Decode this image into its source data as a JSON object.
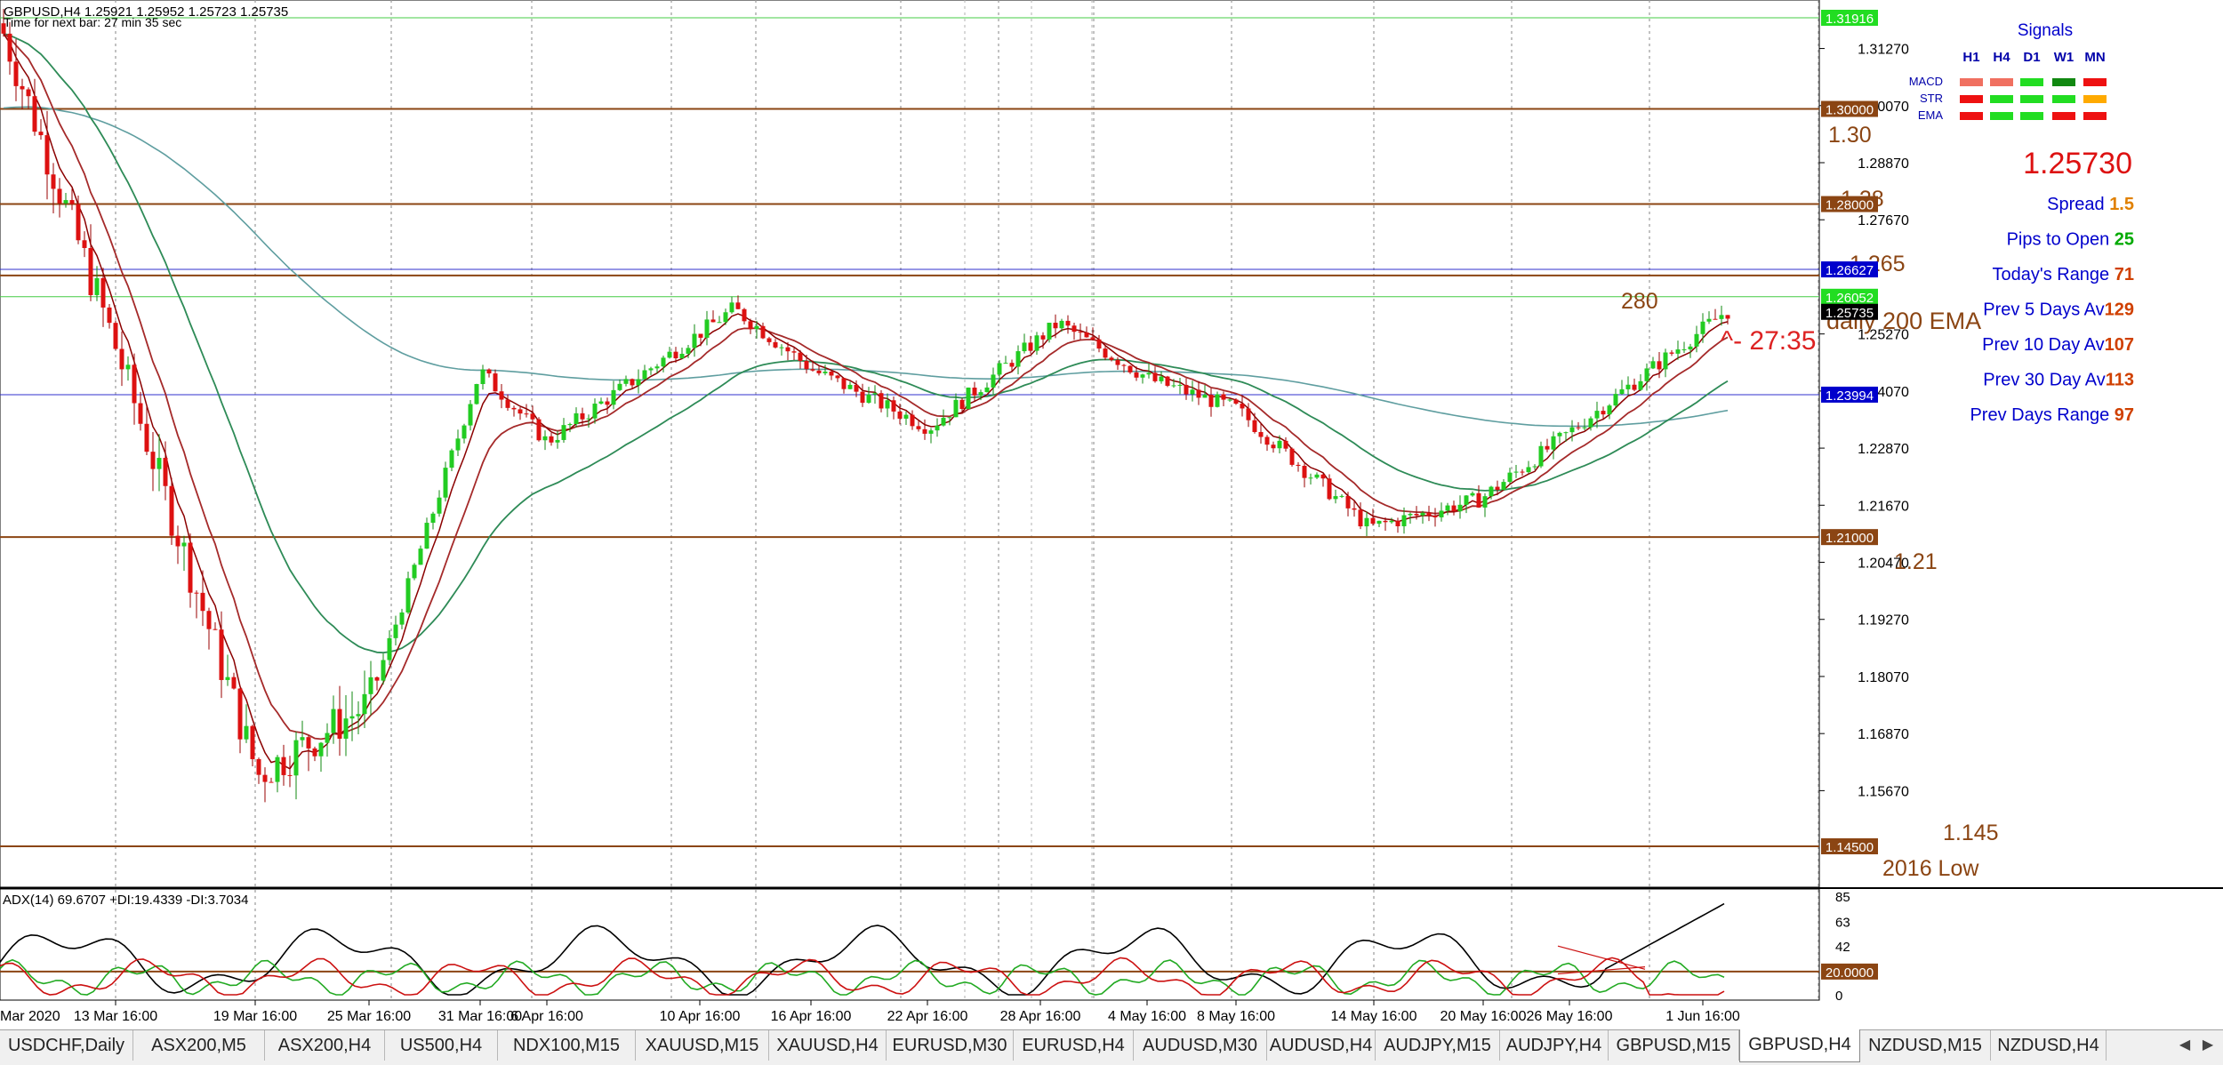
{
  "header": {
    "symbol_line": "GBPUSD,H4  1.25921 1.25952 1.25723 1.25735",
    "timer_line": "Time for next bar: 27 min 35 sec"
  },
  "signals": {
    "title": "Signals",
    "columns": [
      "H1",
      "H4",
      "D1",
      "W1",
      "MN"
    ],
    "rows": [
      {
        "label": "MACD",
        "colors": [
          "#f07060",
          "#f07060",
          "#22dd22",
          "#118811",
          "#ee1111"
        ]
      },
      {
        "label": "STR",
        "colors": [
          "#ee1111",
          "#22dd22",
          "#22dd22",
          "#22dd22",
          "#ffaa00"
        ]
      },
      {
        "label": "EMA",
        "colors": [
          "#ee1111",
          "#22dd22",
          "#22dd22",
          "#ee1111",
          "#ee1111"
        ]
      }
    ]
  },
  "stats": {
    "price": "1.25730",
    "rows": [
      {
        "label": "Spread",
        "value": "1.5",
        "value_color": "#e08000"
      },
      {
        "label": "Pips to Open",
        "value": "25",
        "value_color": "#00aa00"
      },
      {
        "label": "Today's Range",
        "value": "71",
        "value_color": "#d04000"
      },
      {
        "label": "Prev 5 Days Av",
        "value": "129",
        "value_color": "#d04000"
      },
      {
        "label": "Prev 10 Day Av",
        "value": "107",
        "value_color": "#d04000"
      },
      {
        "label": "Prev 30 Day Av",
        "value": "113",
        "value_color": "#d04000"
      },
      {
        "label": "Prev Days Range",
        "value": "97",
        "value_color": "#d04000"
      }
    ]
  },
  "annotations": {
    "level_130": "1.30",
    "level_128": "1.28",
    "level_1265": "1.265",
    "level_121": "1.21",
    "level_1145": "1.145",
    "low_2016": "2016 Low",
    "n280": "280",
    "ema200": "daily 200 EMA",
    "countdown": "^- 27:35"
  },
  "price_axis": {
    "ticks": [
      "1.31270",
      "1.30070",
      "1.28870",
      "1.27670",
      "1.25270",
      "1.24070",
      "1.22870",
      "1.21670",
      "1.20470",
      "1.19270",
      "1.18070",
      "1.16870",
      "1.15670"
    ],
    "tags": [
      {
        "text": "1.31916",
        "bg": "#22dd22",
        "fg": "#ffffff"
      },
      {
        "text": "1.30000",
        "bg": "#8b4513",
        "fg": "#ffffff"
      },
      {
        "text": "1.28000",
        "bg": "#8b4513",
        "fg": "#ffffff"
      },
      {
        "text": "1.26627",
        "bg": "#0000cc",
        "fg": "#ffffff"
      },
      {
        "text": "1.26052",
        "bg": "#22dd22",
        "fg": "#ffffff"
      },
      {
        "text": "1.25735",
        "bg": "#000000",
        "fg": "#ffffff"
      },
      {
        "text": "1.23994",
        "bg": "#0000cc",
        "fg": "#ffffff"
      },
      {
        "text": "1.21000",
        "bg": "#8b4513",
        "fg": "#ffffff"
      },
      {
        "text": "1.14500",
        "bg": "#8b4513",
        "fg": "#ffffff"
      }
    ]
  },
  "indicator": {
    "label": "ADX(14) 69.6707 +DI:19.4339 -DI:3.7034",
    "ticks": [
      "85",
      "63",
      "42",
      "0"
    ],
    "level_tag": "20.0000"
  },
  "time_axis": [
    "Mar 2020",
    "13 Mar 16:00",
    "19 Mar 16:00",
    "25 Mar 16:00",
    "31 Mar 16:00",
    "6 Apr 16:00",
    "10 Apr 16:00",
    "16 Apr 16:00",
    "22 Apr 16:00",
    "28 Apr 16:00",
    "4 May 16:00",
    "8 May 16:00",
    "14 May 16:00",
    "20 May 16:00",
    "26 May 16:00",
    "1 Jun 16:00"
  ],
  "tabs": [
    {
      "label": "USDCHF,Daily",
      "active": false
    },
    {
      "label": "ASX200,M5",
      "active": false
    },
    {
      "label": "ASX200,H4",
      "active": false
    },
    {
      "label": "US500,H4",
      "active": false
    },
    {
      "label": "NDX100,M15",
      "active": false
    },
    {
      "label": "XAUUSD,M15",
      "active": false
    },
    {
      "label": "XAUUSD,H4",
      "active": false
    },
    {
      "label": "EURUSD,M30",
      "active": false
    },
    {
      "label": "EURUSD,H4",
      "active": false
    },
    {
      "label": "AUDUSD,M30",
      "active": false
    },
    {
      "label": "AUDUSD,H4",
      "active": false
    },
    {
      "label": "AUDJPY,M15",
      "active": false
    },
    {
      "label": "AUDJPY,H4",
      "active": false
    },
    {
      "label": "GBPUSD,M15",
      "active": false
    },
    {
      "label": "GBPUSD,H4",
      "active": true
    },
    {
      "label": "NZDUSD,M15",
      "active": false
    },
    {
      "label": "NZDUSD,H4",
      "active": false
    }
  ],
  "chart_data": {
    "type": "candlestick",
    "symbol": "GBPUSD",
    "timeframe": "H4",
    "ylim": [
      1.145,
      1.32
    ],
    "close_path": [
      [
        "Mar 2020",
        1.318
      ],
      [
        "13 Mar 16:00",
        1.25
      ],
      [
        "19 Mar 16:00",
        1.16
      ],
      [
        "25 Mar 16:00",
        1.175
      ],
      [
        "31 Mar 16:00",
        1.245
      ],
      [
        "6 Apr 16:00",
        1.23
      ],
      [
        "10 Apr 16:00",
        1.258
      ],
      [
        "16 Apr 16:00",
        1.245
      ],
      [
        "22 Apr 16:00",
        1.233
      ],
      [
        "28 Apr 16:00",
        1.255
      ],
      [
        "4 May 16:00",
        1.243
      ],
      [
        "8 May 16:00",
        1.237
      ],
      [
        "14 May 16:00",
        1.212
      ],
      [
        "20 May 16:00",
        1.218
      ],
      [
        "26 May 16:00",
        1.232
      ],
      [
        "1 Jun 16:00",
        1.2574
      ]
    ],
    "horizontal_levels": [
      1.3,
      1.28,
      1.265,
      1.26627,
      1.26052,
      1.23994,
      1.21,
      1.145
    ],
    "adx": {
      "adx": 69.6707,
      "plus_di": 19.4339,
      "minus_di": 3.7034,
      "level": 20
    }
  }
}
